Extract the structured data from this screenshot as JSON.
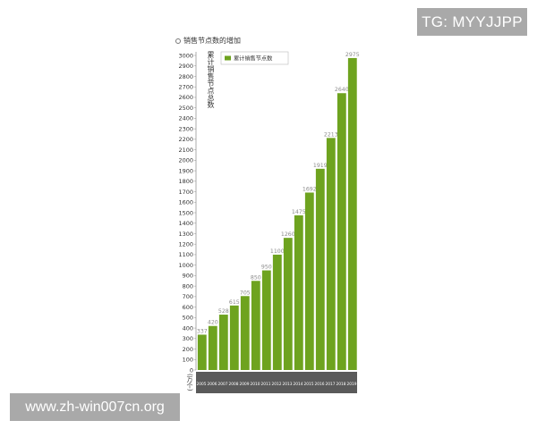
{
  "watermarks": {
    "tg": "TG: MYYJJPP",
    "url": "www.zh-win007cn.org"
  },
  "colors": {
    "bar": "#6ea31f",
    "axis_band": "#5a5a5a",
    "value_label": "#8c8c8c",
    "watermark_bg": "#a9a9a9"
  },
  "chart_data": {
    "type": "bar",
    "title": "销售节点数的增加",
    "ylabel": "累计销售节点总数",
    "unit": "(万个)",
    "legend": {
      "label": "累计销售节点数",
      "position": "top-left"
    },
    "categories": [
      "2005",
      "2006",
      "2007",
      "2008",
      "2009",
      "2010",
      "2011",
      "2012",
      "2013",
      "2014",
      "2015",
      "2016",
      "2017",
      "2018",
      "2019"
    ],
    "series": [
      {
        "name": "累计销售节点数",
        "values": [
          337,
          420,
          528,
          615,
          705,
          850,
          950,
          1100,
          1260,
          1475,
          1692,
          1919,
          2213,
          2640,
          2975
        ]
      }
    ],
    "ylim": [
      0,
      3000
    ],
    "yticks": [
      0,
      100,
      200,
      300,
      400,
      500,
      600,
      700,
      800,
      900,
      1000,
      1100,
      1200,
      1300,
      1400,
      1500,
      1600,
      1700,
      1800,
      1900,
      2000,
      2100,
      2200,
      2300,
      2400,
      2500,
      2600,
      2700,
      2800,
      2900,
      3000
    ],
    "grid": false
  }
}
